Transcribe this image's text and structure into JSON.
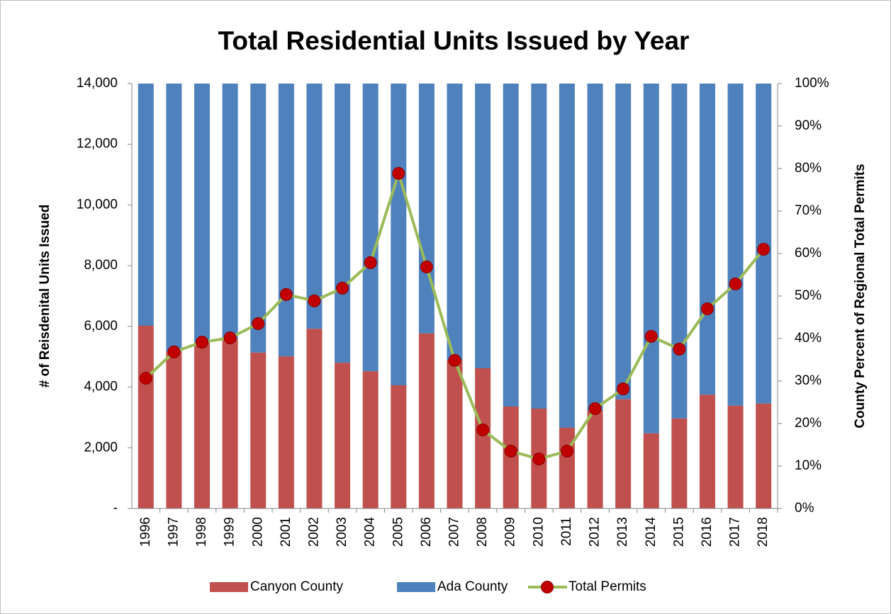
{
  "chart_data": {
    "type": "bar_line",
    "title": "Total Residential Units Issued by Year",
    "ylabel": "# of Reisdenital Units Issued",
    "y2label": "County Percent of Regional Total Permits",
    "categories": [
      "1996",
      "1997",
      "1998",
      "1999",
      "2000",
      "2001",
      "2002",
      "2003",
      "2004",
      "2005",
      "2006",
      "2007",
      "2008",
      "2009",
      "2010",
      "2011",
      "2012",
      "2013",
      "2014",
      "2015",
      "2016",
      "2017",
      "2018"
    ],
    "series": [
      {
        "name": "Canyon County",
        "color": "#c0504d",
        "axis": "y2",
        "kind": "stacked-bar",
        "values": [
          43,
          37,
          39,
          40,
          36.7,
          35.8,
          42.3,
          34.3,
          32.3,
          29,
          41.2,
          35,
          33,
          24,
          23.5,
          19,
          23,
          25.7,
          17.7,
          21.2,
          26.8,
          24.2,
          24.7
        ]
      },
      {
        "name": "Ada County",
        "color": "#4f81bd",
        "axis": "y2",
        "kind": "stacked-bar",
        "values": [
          57,
          63,
          61,
          60,
          63.3,
          64.2,
          57.7,
          65.7,
          67.7,
          71,
          58.8,
          65,
          67,
          76,
          76.5,
          81,
          77,
          74.3,
          82.3,
          78.8,
          73.2,
          75.8,
          75.3
        ]
      },
      {
        "name": "Total Permits",
        "color": "#9bbb59",
        "marker_color": "#c00000",
        "axis": "y",
        "kind": "line",
        "values": [
          4290,
          5160,
          5480,
          5620,
          6090,
          7050,
          6840,
          7260,
          8100,
          11040,
          7960,
          4880,
          2590,
          1890,
          1630,
          1890,
          3290,
          3940,
          5670,
          5250,
          6580,
          7400,
          8540
        ]
      }
    ],
    "ylim": [
      0,
      14000
    ],
    "yticks": [
      {
        "value": 0,
        "label": "-"
      },
      {
        "value": 2000,
        "label": "2,000"
      },
      {
        "value": 4000,
        "label": "4,000"
      },
      {
        "value": 6000,
        "label": "6,000"
      },
      {
        "value": 8000,
        "label": "8,000"
      },
      {
        "value": 10000,
        "label": "10,000"
      },
      {
        "value": 12000,
        "label": "12,000"
      },
      {
        "value": 14000,
        "label": "14,000"
      }
    ],
    "y2lim": [
      0,
      100
    ],
    "y2ticks": [
      {
        "value": 0,
        "label": "0%"
      },
      {
        "value": 10,
        "label": "10%"
      },
      {
        "value": 20,
        "label": "20%"
      },
      {
        "value": 30,
        "label": "30%"
      },
      {
        "value": 40,
        "label": "40%"
      },
      {
        "value": 50,
        "label": "50%"
      },
      {
        "value": 60,
        "label": "60%"
      },
      {
        "value": 70,
        "label": "70%"
      },
      {
        "value": 80,
        "label": "80%"
      },
      {
        "value": 90,
        "label": "90%"
      },
      {
        "value": 100,
        "label": "100%"
      }
    ],
    "legend": "bottom"
  }
}
